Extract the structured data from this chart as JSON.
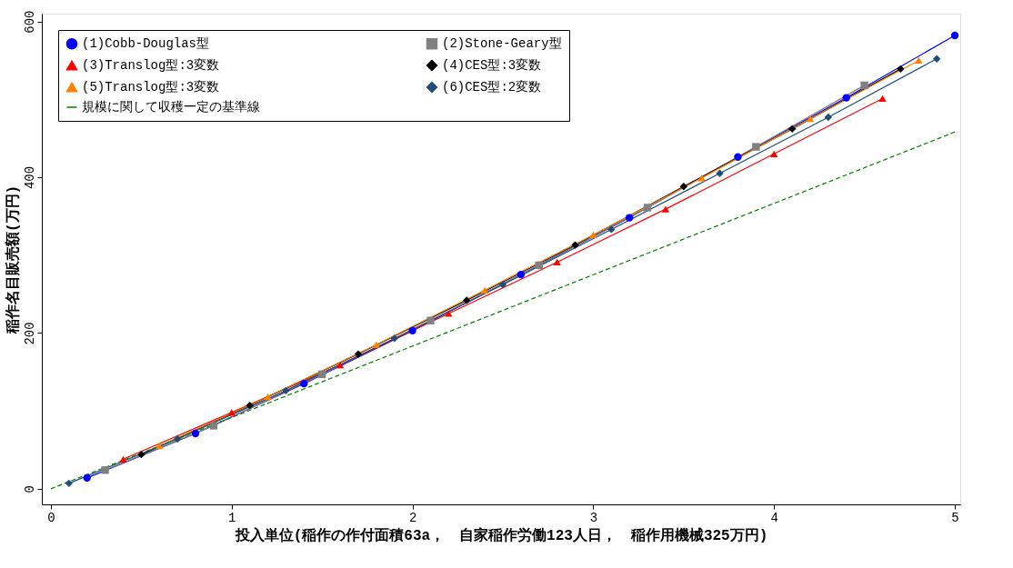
{
  "chart_data": {
    "type": "line",
    "xlabel": "投入単位(稲作の作付面積63a，　自家稲作労働123人日，　稲作用機械325万円)",
    "ylabel": "稲作名目販売額(万円)",
    "xlim": [
      -0.05,
      5.03
    ],
    "xticks": [
      0,
      1,
      2,
      3,
      4,
      5
    ],
    "ylim": [
      -20,
      610
    ],
    "yticks": [
      0,
      200,
      400,
      600
    ],
    "grid": false,
    "legend": "top left",
    "series": [
      {
        "name": "(1)Cobb-Douglas型",
        "color": "#0000ff",
        "marker": "circle",
        "x": [
          0.2,
          0.8,
          1.4,
          2.0,
          2.6,
          3.2,
          3.8,
          4.4,
          5.0
        ],
        "values": [
          14,
          71,
          135,
          203,
          275,
          348,
          426,
          502,
          582
        ]
      },
      {
        "name": "(2)Stone-Geary型",
        "color": "#808080",
        "marker": "square",
        "x": [
          0.3,
          0.9,
          1.5,
          2.1,
          2.7,
          3.3,
          3.9,
          4.5
        ],
        "values": [
          24,
          81,
          147,
          216,
          287,
          361,
          439,
          518
        ]
      },
      {
        "name": "(3)Translog型:3変数",
        "color": "#ff0000",
        "marker": "triangle",
        "x": [
          0.4,
          1.0,
          1.6,
          2.2,
          2.8,
          3.4,
          4.0,
          4.6
        ],
        "values": [
          38,
          98,
          159,
          225,
          291,
          359,
          430,
          501
        ]
      },
      {
        "name": "(4)CES型:3変数",
        "color": "#000000",
        "marker": "diamond",
        "x": [
          0.5,
          1.1,
          1.7,
          2.3,
          2.9,
          3.5,
          4.1,
          4.7
        ],
        "values": [
          44,
          107,
          173,
          242,
          313,
          388,
          462,
          539
        ]
      },
      {
        "name": "(5)Translog型:3変数",
        "color": "#ff8000",
        "marker": "triangle",
        "x": [
          0.6,
          1.2,
          1.8,
          2.4,
          3.0,
          3.6,
          4.2,
          4.8
        ],
        "values": [
          55,
          118,
          185,
          255,
          326,
          399,
          475,
          550
        ]
      },
      {
        "name": "(6)CES型:2変数",
        "color": "#1f4e79",
        "marker": "diamond",
        "x": [
          0.1,
          0.7,
          1.3,
          1.9,
          2.5,
          3.1,
          3.7,
          4.3,
          4.9
        ],
        "values": [
          7,
          64,
          126,
          193,
          262,
          333,
          405,
          477,
          552
        ]
      },
      {
        "name": "規模に関して収穫一定の基準線",
        "color": "#008000",
        "marker": "none",
        "line_style": "dashed",
        "x": [
          0,
          5
        ],
        "values": [
          0,
          458
        ]
      }
    ]
  }
}
